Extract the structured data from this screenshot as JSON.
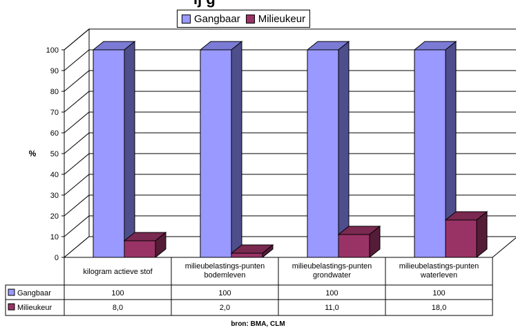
{
  "chart_data": {
    "type": "bar",
    "categories": [
      [
        "kilogram actieve stof"
      ],
      [
        "milieubelastings-punten",
        "bodemleven"
      ],
      [
        "milieubelastings-punten",
        "grondwater"
      ],
      [
        "milieubelastings-punten",
        "waterleven"
      ]
    ],
    "series": [
      {
        "name": "Gangbaar",
        "values": [
          100,
          100,
          100,
          100
        ],
        "labels": [
          "100",
          "100",
          "100",
          "100"
        ],
        "color": "#9999ff",
        "top_color": "#7b7bd6",
        "side_color": "#4e4e8c"
      },
      {
        "name": "Milieukeur",
        "values": [
          8.0,
          2.0,
          11.0,
          18.0
        ],
        "labels": [
          "8,0",
          "2,0",
          "11,0",
          "18,0"
        ],
        "color": "#993366",
        "top_color": "#7a2950",
        "side_color": "#551c38"
      }
    ],
    "ylabel": "%",
    "ylim": [
      0,
      100
    ],
    "yticks": [
      0,
      10,
      20,
      30,
      40,
      50,
      60,
      70,
      80,
      90,
      100
    ],
    "grid": true,
    "legend_position": "top",
    "source": "bron: BMA, CLM",
    "title_fragment": "ij g"
  }
}
